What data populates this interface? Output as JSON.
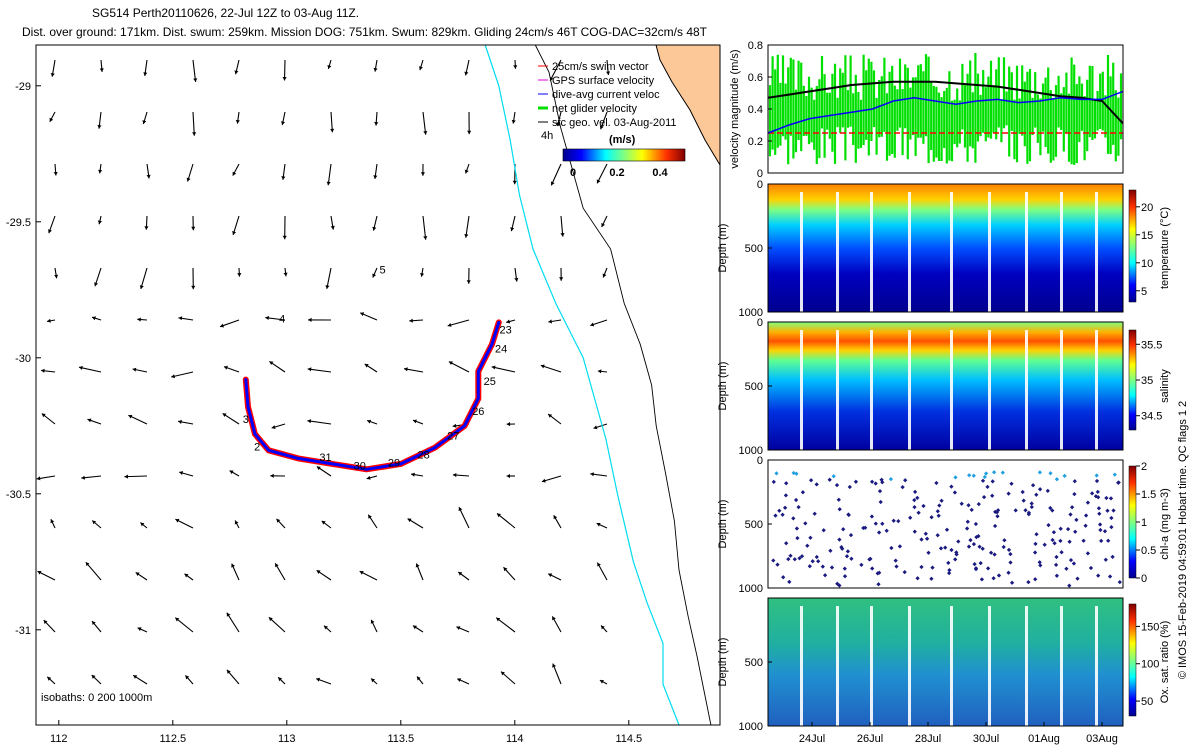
{
  "header": {
    "title": "SG514 Perth20110626,  22-Jul 12Z to 03-Aug 11Z.",
    "subtitle": "Dist. over ground: 171km. Dist. swum: 259km. Mission DOG: 751km. Swum: 829km. Gliding 24cm/s 46T COG-DAC=32cm/s 48T"
  },
  "colors": {
    "land": "#fdc898",
    "isobath": "#00dcf0",
    "swim": "#ff0000",
    "gps": "#e000e0",
    "dac": "#0000ff",
    "net": "#00e000",
    "sfc": "#000000"
  },
  "chart_data": [
    {
      "type": "map",
      "xlim": [
        111.9,
        114.9
      ],
      "ylim": [
        -31.35,
        -28.85
      ],
      "xticks": [
        "112",
        "112.5",
        "113",
        "113.5",
        "114",
        "114.5"
      ],
      "yticks": [
        "-29",
        "-29.5",
        "-30",
        "-30.5",
        "-31"
      ],
      "legend": [
        "25cm/s swim vector",
        "GPS surface velocity",
        "dive-avg current veloc",
        "net glider velocity",
        "sfc geo. vel. 03-Aug-2011"
      ],
      "legend_extra": "4h",
      "colorbar_title": "(m/s)",
      "colorbar_ticks": [
        "0",
        "0.2",
        "0.4"
      ],
      "isobath_note": "isobaths: 0   200  1000m",
      "day_labels": [
        {
          "text": "2",
          "lon": 112.87,
          "lat": -30.34
        },
        {
          "text": "3",
          "lon": 112.82,
          "lat": -30.24
        },
        {
          "text": "4",
          "lon": 112.98,
          "lat": -29.87
        },
        {
          "text": "5",
          "lon": 113.42,
          "lat": -29.69
        },
        {
          "text": "23",
          "lon": 113.96,
          "lat": -29.91
        },
        {
          "text": "24",
          "lon": 113.94,
          "lat": -29.98
        },
        {
          "text": "25",
          "lon": 113.89,
          "lat": -30.1
        },
        {
          "text": "26",
          "lon": 113.84,
          "lat": -30.21
        },
        {
          "text": "27",
          "lon": 113.73,
          "lat": -30.3
        },
        {
          "text": "28",
          "lon": 113.6,
          "lat": -30.37
        },
        {
          "text": "29",
          "lon": 113.47,
          "lat": -30.4
        },
        {
          "text": "30",
          "lon": 113.32,
          "lat": -30.41
        },
        {
          "text": "31",
          "lon": 113.17,
          "lat": -30.38
        }
      ],
      "track": [
        [
          112.82,
          -30.08
        ],
        [
          112.83,
          -30.18
        ],
        [
          112.86,
          -30.28
        ],
        [
          112.92,
          -30.34
        ],
        [
          113.05,
          -30.37
        ],
        [
          113.2,
          -30.39
        ],
        [
          113.35,
          -30.41
        ],
        [
          113.5,
          -30.39
        ],
        [
          113.65,
          -30.33
        ],
        [
          113.78,
          -30.25
        ],
        [
          113.84,
          -30.15
        ],
        [
          113.84,
          -30.05
        ],
        [
          113.9,
          -29.95
        ],
        [
          113.93,
          -29.87
        ]
      ],
      "isobath_0m": [
        [
          114.09,
          -28.85
        ],
        [
          114.15,
          -28.95
        ],
        [
          114.2,
          -29.15
        ],
        [
          114.25,
          -29.3
        ],
        [
          114.3,
          -29.45
        ],
        [
          114.42,
          -29.6
        ],
        [
          114.48,
          -29.8
        ],
        [
          114.55,
          -29.95
        ],
        [
          114.6,
          -30.1
        ],
        [
          114.62,
          -30.25
        ],
        [
          114.66,
          -30.42
        ],
        [
          114.7,
          -30.6
        ],
        [
          114.72,
          -30.78
        ],
        [
          114.76,
          -30.95
        ],
        [
          114.8,
          -31.1
        ],
        [
          114.86,
          -31.35
        ]
      ],
      "isobath_200m": [
        [
          113.87,
          -28.85
        ],
        [
          113.93,
          -29.0
        ],
        [
          113.98,
          -29.2
        ],
        [
          114.02,
          -29.4
        ],
        [
          114.08,
          -29.6
        ],
        [
          114.18,
          -29.8
        ],
        [
          114.3,
          -30.0
        ],
        [
          114.35,
          -30.15
        ],
        [
          114.4,
          -30.3
        ],
        [
          114.45,
          -30.5
        ],
        [
          114.52,
          -30.75
        ],
        [
          114.58,
          -30.9
        ],
        [
          114.65,
          -31.05
        ],
        [
          114.65,
          -31.2
        ],
        [
          114.72,
          -31.35
        ]
      ]
    },
    {
      "type": "line",
      "ylabel": "velocity magnitude (m/s)",
      "ylim": [
        0,
        0.8
      ],
      "yticks": [
        "0",
        "0.2",
        "0.4",
        "0.6",
        "0.8"
      ],
      "series": [
        {
          "color": "black",
          "values": [
            0.47,
            0.49,
            0.51,
            0.53,
            0.55,
            0.56,
            0.57,
            0.57,
            0.57,
            0.56,
            0.55,
            0.54,
            0.52,
            0.5,
            0.48,
            0.47,
            0.45,
            0.31
          ]
        },
        {
          "color": "blue",
          "values": [
            0.25,
            0.3,
            0.34,
            0.36,
            0.38,
            0.4,
            0.45,
            0.47,
            0.45,
            0.43,
            0.45,
            0.46,
            0.44,
            0.45,
            0.47,
            0.46,
            0.46,
            0.51
          ]
        },
        {
          "color": "red",
          "values": [
            0.25,
            0.25
          ]
        }
      ]
    },
    {
      "type": "heatmap",
      "ylabel": "Depth (m)",
      "yticks": [
        "0",
        "500",
        "1000"
      ],
      "colorbar_label": "temperature (°C)",
      "colorbar_ticks": [
        "5",
        "10",
        "15",
        "20"
      ]
    },
    {
      "type": "heatmap",
      "ylabel": "Depth (m)",
      "yticks": [
        "0",
        "500",
        "1000"
      ],
      "colorbar_label": "salinity",
      "colorbar_ticks": [
        "34.5",
        "35",
        "35.5"
      ]
    },
    {
      "type": "scatter",
      "ylabel": "Depth (m)",
      "yticks": [
        "0",
        "500",
        "1000"
      ],
      "colorbar_label": "chl-a (mg m-3)",
      "colorbar_ticks": [
        "0",
        "0.5",
        "1",
        "1.5",
        "2"
      ]
    },
    {
      "type": "scatter",
      "ylabel": "Depth (m)",
      "yticks": [
        "500",
        "1000"
      ],
      "colorbar_label": "Ox. sat. ratio (%)",
      "colorbar_ticks": [
        "50",
        "100",
        "150"
      ],
      "xticks": [
        "24Jul",
        "26Jul",
        "28Jul",
        "30Jul",
        "01Aug",
        "03Aug"
      ]
    }
  ],
  "footer": {
    "credit": "© IMOS 15-Feb-2019 04:59:01 Hobart time. QC flags 1  2"
  }
}
